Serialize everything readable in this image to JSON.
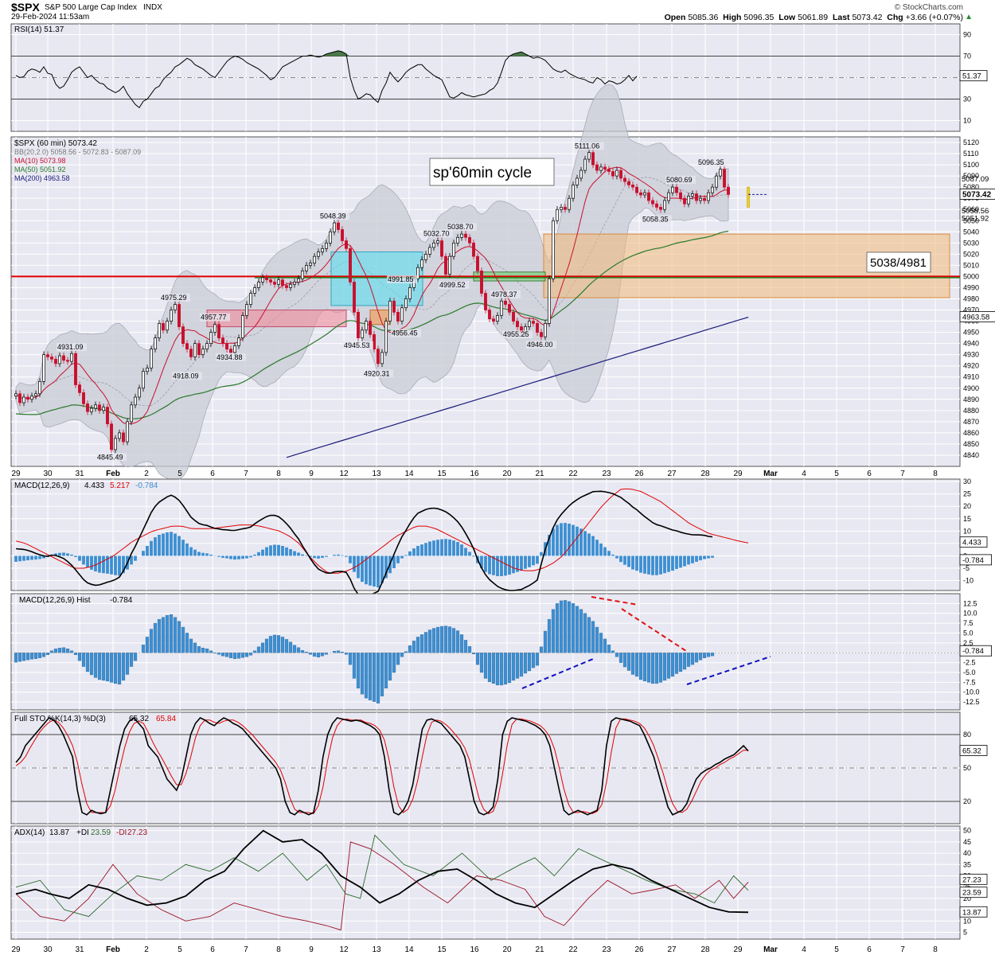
{
  "header": {
    "symbol": "$SPX",
    "name": "S&P 500 Large Cap Index",
    "exchange": "INDX",
    "datetime": "29-Feb-2024 11:53am",
    "open_label": "Open",
    "open": "5085.36",
    "high_label": "High",
    "high": "5096.35",
    "low_label": "Low",
    "low": "5061.89",
    "last_label": "Last",
    "last": "5073.42",
    "chg_label": "Chg",
    "chg": "+3.66 (+0.07%)",
    "chg_arrow": "▲",
    "watermark": "© StockCharts.com"
  },
  "chart_data": {
    "type": "candlestick-with-indicators",
    "x_ticks": [
      "29",
      "30",
      "31",
      "Feb",
      "2",
      "5",
      "6",
      "7",
      "8",
      "9",
      "12",
      "13",
      "14",
      "15",
      "16",
      "20",
      "21",
      "22",
      "23",
      "26",
      "27",
      "28",
      "29",
      "Mar",
      "4",
      "5",
      "6",
      "7",
      "8"
    ],
    "x_ticks_bold": [
      "Feb",
      "Mar"
    ],
    "colors": {
      "panel_bg": "#e8e8f2",
      "grid": "#ffffff",
      "up": "#000000",
      "down": "#c8102e",
      "ma10": "#c8102e",
      "ma50": "#2a7a2a",
      "ma200": "#1a1a7a",
      "bb": "#c9ccd6",
      "hist": "#3d8fd1",
      "sig": "#e00000",
      "accent_line": "#e00000",
      "support_line": "#208020"
    },
    "rsi": {
      "legend": "RSI(14) 51.37",
      "last": "51.37",
      "y_ticks": [
        "90",
        "70",
        "50",
        "30",
        "10"
      ],
      "ylim": [
        0,
        100
      ],
      "values": [
        52,
        50,
        51,
        56,
        58,
        57,
        55,
        60,
        54,
        53,
        44,
        40,
        42,
        48,
        55,
        58,
        60,
        55,
        50,
        52,
        48,
        45,
        44,
        40,
        38,
        36,
        38,
        42,
        35,
        30,
        25,
        22,
        28,
        30,
        35,
        40,
        42,
        48,
        52,
        55,
        60,
        62,
        65,
        68,
        66,
        62,
        60,
        58,
        55,
        52,
        50,
        55,
        60,
        65,
        68,
        70,
        69,
        67,
        64,
        62,
        60,
        58,
        55,
        52,
        48,
        50,
        55,
        60,
        62,
        64,
        66,
        68,
        70,
        70,
        71,
        70,
        69,
        70,
        72,
        73,
        74,
        75,
        74,
        72,
        50,
        38,
        30,
        32,
        35,
        34,
        30,
        27,
        38,
        45,
        55,
        50,
        46,
        50,
        55,
        58,
        60,
        62,
        62,
        58,
        55,
        52,
        50,
        48,
        40,
        32,
        31,
        33,
        36,
        34,
        33,
        32,
        33,
        34,
        35,
        38,
        40,
        45,
        55,
        66,
        70,
        72,
        73,
        74,
        72,
        70,
        68,
        69,
        68,
        66,
        62,
        58,
        56,
        55,
        57,
        54,
        52,
        50,
        49,
        48,
        46,
        45,
        50,
        48,
        44,
        47,
        46,
        44,
        45,
        48,
        52,
        47,
        51.37
      ],
      "overbought": 70,
      "oversold": 30,
      "mid": 50
    },
    "price": {
      "legend_title": "$SPX (60 min) 5073.42",
      "legend_bb": "BB(20,2.0) 5058.56 - 5072.83 - 5087.09",
      "legend_ma10": "MA(10) 5073.98",
      "legend_ma50": "MA(50) 5051.92",
      "legend_ma200": "MA(200) 4963.58",
      "ylim": [
        4830,
        5125
      ],
      "y_ticks": [
        4840,
        4850,
        4860,
        4870,
        4880,
        4890,
        4900,
        4910,
        4920,
        4930,
        4940,
        4950,
        4960,
        4970,
        4980,
        4990,
        5000,
        5010,
        5020,
        5030,
        5040,
        5050,
        5060,
        5070,
        5080,
        5090,
        5100,
        5110,
        5120
      ],
      "right_tags": [
        {
          "label": "5087.09",
          "value": 5087.09,
          "style": "plain"
        },
        {
          "label": "5073.42",
          "value": 5073.42,
          "style": "last"
        },
        {
          "label": "5058.56",
          "value": 5058.56,
          "style": "plain"
        },
        {
          "label": "5051.92",
          "value": 5051.92,
          "style": "plain"
        },
        {
          "label": "4963.58",
          "value": 4963.58,
          "style": "box"
        }
      ],
      "closes": [
        4895,
        4887,
        4892,
        4890,
        4893,
        4895,
        4906,
        4930,
        4928,
        4926,
        4922,
        4929,
        4925,
        4924,
        4931,
        4903,
        4896,
        4886,
        4879,
        4882,
        4885,
        4880,
        4883,
        4868,
        4845,
        4855,
        4860,
        4852,
        4870,
        4885,
        4892,
        4900,
        4915,
        4918,
        4935,
        4945,
        4958,
        4952,
        4960,
        4970,
        4975,
        4955,
        4940,
        4935,
        4928,
        4940,
        4930,
        4935,
        4940,
        4950,
        4957,
        4945,
        4940,
        4935,
        4932,
        4938,
        4945,
        4965,
        4975,
        4985,
        4990,
        4995,
        4999,
        4997,
        4995,
        4993,
        4997,
        4992,
        4990,
        4993,
        4995,
        4998,
        5005,
        5010,
        5012,
        5018,
        5022,
        5025,
        5030,
        5040,
        5048,
        5042,
        5032,
        5025,
        4995,
        4968,
        4945,
        4952,
        4960,
        4948,
        4935,
        4922,
        4932,
        4960,
        4978,
        4968,
        4960,
        4972,
        4980,
        4990,
        4998,
        5008,
        5015,
        5020,
        5026,
        5030,
        5032,
        5018,
        5002,
        5018,
        5030,
        5035,
        5038,
        5035,
        5030,
        5018,
        5005,
        4985,
        4970,
        4962,
        4960,
        4965,
        4978,
        4975,
        4968,
        4960,
        4955,
        4950,
        4955,
        4960,
        4958,
        4950,
        4946,
        4958,
        4998,
        5050,
        5060,
        5062,
        5060,
        5070,
        5082,
        5088,
        5095,
        5105,
        5111,
        5100,
        5095,
        5098,
        5096,
        5094,
        5090,
        5095,
        5088,
        5085,
        5082,
        5080,
        5075,
        5073,
        5075,
        5068,
        5065,
        5062,
        5060,
        5068,
        5075,
        5080,
        5075,
        5070,
        5065,
        5072,
        5074,
        5068,
        5070,
        5068,
        5075,
        5080,
        5090,
        5096,
        5080,
        5073.42
      ],
      "labels": [
        {
          "text": "4931.09",
          "i": 14,
          "v": 4931.09
        },
        {
          "text": "4845.49",
          "i": 24,
          "v": 4845.49
        },
        {
          "text": "4975.29",
          "i": 40,
          "v": 4975.29
        },
        {
          "text": "4918.09",
          "i": 43,
          "v": 4918.09
        },
        {
          "text": "4957.77",
          "i": 50,
          "v": 4957.77
        },
        {
          "text": "4934.88",
          "i": 54,
          "v": 4934.88
        },
        {
          "text": "5048.39",
          "i": 80,
          "v": 5048.39
        },
        {
          "text": "4945.53",
          "i": 86,
          "v": 4945.53
        },
        {
          "text": "4920.31",
          "i": 91,
          "v": 4920.31
        },
        {
          "text": "4991.85",
          "i": 97,
          "v": 4991.85
        },
        {
          "text": "4956.45",
          "i": 98,
          "v": 4956.45
        },
        {
          "text": "5032.70",
          "i": 106,
          "v": 5032.7
        },
        {
          "text": "4999.52",
          "i": 110,
          "v": 4999.52
        },
        {
          "text": "5038.70",
          "i": 112,
          "v": 5038.7
        },
        {
          "text": "4978.37",
          "i": 123,
          "v": 4978.37
        },
        {
          "text": "4955.25",
          "i": 126,
          "v": 4955.25
        },
        {
          "text": "4946.00",
          "i": 132,
          "v": 4946.0
        },
        {
          "text": "5111.06",
          "i": 144,
          "v": 5111.06
        },
        {
          "text": "5080.69",
          "i": 167,
          "v": 5080.69
        },
        {
          "text": "5058.35",
          "i": 161,
          "v": 5058.35
        },
        {
          "text": "5096.35",
          "i": 175,
          "v": 5096.35
        }
      ],
      "annotation_title": "sp'60min cycle",
      "annotation_zone": "5038/4981",
      "zone_top": 5038,
      "zone_bottom": 4981,
      "red_line": 5000,
      "green_line": 4999
    },
    "macd": {
      "legend_name": "MACD(12,26,9)",
      "legend_macd": "4.433",
      "legend_signal": "5.217",
      "legend_hist": "-0.784",
      "y_ticks": [
        "30",
        "25",
        "20",
        "15",
        "10",
        "5",
        "0",
        "-5",
        "-10"
      ],
      "ylim": [
        -14,
        31
      ],
      "right_tags": [
        {
          "label": "4.433",
          "value": 4.433
        },
        {
          "label": "-0.784",
          "value": -0.784
        }
      ]
    },
    "hist": {
      "legend_name": "MACD(12,26,9) Hist",
      "legend_value": "-0.784",
      "y_ticks": [
        "12.5",
        "10.0",
        "7.5",
        "5.0",
        "2.5",
        "0.0",
        "-2.5",
        "-5.0",
        "-7.5",
        "-10.0",
        "-12.5"
      ],
      "ylim": [
        -14.5,
        15
      ],
      "right_tag": "-0.784",
      "values": [
        -2.4,
        -2.2,
        -2,
        -1.8,
        -1.6,
        -1.5,
        -1.3,
        -1.0,
        -0.5,
        0.5,
        1.0,
        1.2,
        1.3,
        1.0,
        0.5,
        -0.5,
        -2,
        -3.5,
        -4.8,
        -5.6,
        -6.3,
        -6.8,
        -7,
        -7.2,
        -7.5,
        -7.8,
        -8,
        -7,
        -5.5,
        -3.5,
        -2,
        0,
        2,
        4,
        6,
        7.5,
        8.5,
        9,
        9.5,
        9.7,
        9,
        8,
        6.5,
        5,
        3.5,
        2.5,
        1.6,
        1.2,
        1.0,
        0.5,
        -0.1,
        -0.4,
        -0.8,
        -1.0,
        -1.3,
        -1.5,
        -1.4,
        -1.2,
        -1,
        -0.6,
        0.5,
        1.5,
        2.5,
        3.5,
        4.2,
        4.5,
        4.4,
        4,
        3.4,
        2.7,
        1.9,
        1.3,
        0.6,
        0.2,
        -0.4,
        -0.9,
        -1.1,
        -0.8,
        -0.4,
        0,
        0.4,
        0.5,
        0.2,
        -0.4,
        -3,
        -6.5,
        -9,
        -10.5,
        -11.5,
        -12,
        -12.4,
        -12.8,
        -11,
        -9,
        -7,
        -5,
        -3,
        -1,
        0.3,
        1.8,
        3,
        4,
        4.6,
        5.2,
        5.8,
        6.2,
        6.5,
        6.7,
        6.8,
        6.6,
        6.2,
        5.6,
        4.6,
        3.2,
        1.6,
        -0.3,
        -3,
        -5,
        -6.5,
        -7.4,
        -7.8,
        -8.2,
        -8.2,
        -8,
        -7.6,
        -7,
        -6.5,
        -6,
        -5.2,
        -4.6,
        -3.8,
        -3.2,
        1.5,
        5.5,
        8.5,
        11,
        12.5,
        13.2,
        13.3,
        13,
        12.5,
        11.8,
        11,
        10,
        9,
        8,
        6.5,
        5,
        3.5,
        2,
        0.5,
        -1,
        -2.5,
        -3.6,
        -4.5,
        -5.5,
        -6,
        -6.8,
        -7.2,
        -7.5,
        -7.8,
        -7.8,
        -7.5,
        -7,
        -6.5,
        -6,
        -5.3,
        -4.8,
        -4.2,
        -3.5,
        -3,
        -2.4,
        -1.8,
        -1.3,
        -1.0,
        -0.784
      ]
    },
    "sto": {
      "legend_name": "Full STO %K(14,3) %D(3)",
      "legend_k": "65.32",
      "legend_d": "65.84",
      "y_ticks": [
        "80",
        "50",
        "20"
      ],
      "ylim": [
        0,
        100
      ],
      "right_tag": "65.32",
      "k": [
        55,
        60,
        70,
        75,
        80,
        85,
        90,
        95,
        93,
        88,
        80,
        70,
        60,
        30,
        10,
        8,
        12,
        10,
        9,
        10,
        30,
        50,
        70,
        85,
        92,
        95,
        90,
        85,
        70,
        65,
        60,
        50,
        40,
        35,
        30,
        40,
        60,
        80,
        90,
        95,
        93,
        90,
        88,
        92,
        95,
        93,
        90,
        88,
        85,
        80,
        75,
        70,
        65,
        60,
        55,
        50,
        40,
        20,
        10,
        8,
        12,
        10,
        8,
        10,
        30,
        60,
        80,
        90,
        95,
        94,
        93,
        92,
        93,
        92,
        90,
        88,
        85,
        80,
        60,
        30,
        10,
        8,
        12,
        20,
        35,
        60,
        85,
        93,
        94,
        92,
        90,
        85,
        80,
        75,
        70,
        60,
        40,
        20,
        10,
        8,
        10,
        15,
        40,
        80,
        92,
        95,
        94,
        93,
        92,
        90,
        88,
        85,
        80,
        70,
        50,
        30,
        12,
        8,
        10,
        12,
        10,
        8,
        10,
        12,
        30,
        70,
        92,
        95,
        94,
        93,
        92,
        90,
        88,
        80,
        70,
        60,
        45,
        30,
        15,
        8,
        10,
        12,
        18,
        30,
        40,
        45,
        48,
        50,
        53,
        55,
        58,
        60,
        62,
        66,
        70,
        65.32
      ],
      "d": [
        52,
        55,
        60,
        68,
        75,
        82,
        87,
        91,
        93,
        91,
        86,
        79,
        70,
        55,
        35,
        18,
        10,
        10,
        10,
        10,
        16,
        30,
        50,
        68,
        82,
        90,
        92,
        90,
        82,
        73,
        65,
        58,
        50,
        42,
        35,
        35,
        45,
        60,
        77,
        88,
        93,
        93,
        91,
        90,
        92,
        93,
        93,
        91,
        88,
        84,
        80,
        75,
        70,
        65,
        60,
        55,
        48,
        37,
        23,
        13,
        10,
        10,
        10,
        9,
        16,
        33,
        57,
        77,
        88,
        93,
        94,
        93,
        93,
        93,
        91,
        90,
        88,
        84,
        75,
        57,
        33,
        16,
        10,
        13,
        22,
        38,
        60,
        80,
        91,
        93,
        92,
        89,
        85,
        80,
        75,
        68,
        57,
        40,
        23,
        13,
        9,
        11,
        22,
        45,
        71,
        89,
        94,
        94,
        93,
        92,
        90,
        88,
        84,
        78,
        67,
        50,
        31,
        17,
        10,
        10,
        11,
        10,
        9,
        11,
        17,
        37,
        64,
        86,
        94,
        94,
        93,
        92,
        90,
        86,
        79,
        70,
        58,
        45,
        30,
        18,
        11,
        10,
        13,
        20,
        29,
        38,
        44,
        48,
        50,
        53,
        55,
        58,
        60,
        63,
        66,
        65.84
      ]
    },
    "adx": {
      "legend_name": "ADX(14)",
      "legend_adx": "13.87",
      "legend_pdi_label": "+DI",
      "legend_pdi": "23.59",
      "legend_mdi_label": "-DI",
      "legend_mdi": "27.23",
      "y_ticks": [
        "50",
        "45",
        "40",
        "35",
        "30",
        "25",
        "20",
        "15",
        "10",
        "5"
      ],
      "ylim": [
        2,
        52
      ],
      "right_tags": [
        {
          "label": "27.23",
          "value": 27.23,
          "c": "mdi"
        },
        {
          "label": "23.59",
          "value": 23.59,
          "c": "pdi"
        },
        {
          "label": "13.87",
          "value": 13.87,
          "c": "adx"
        }
      ]
    }
  }
}
